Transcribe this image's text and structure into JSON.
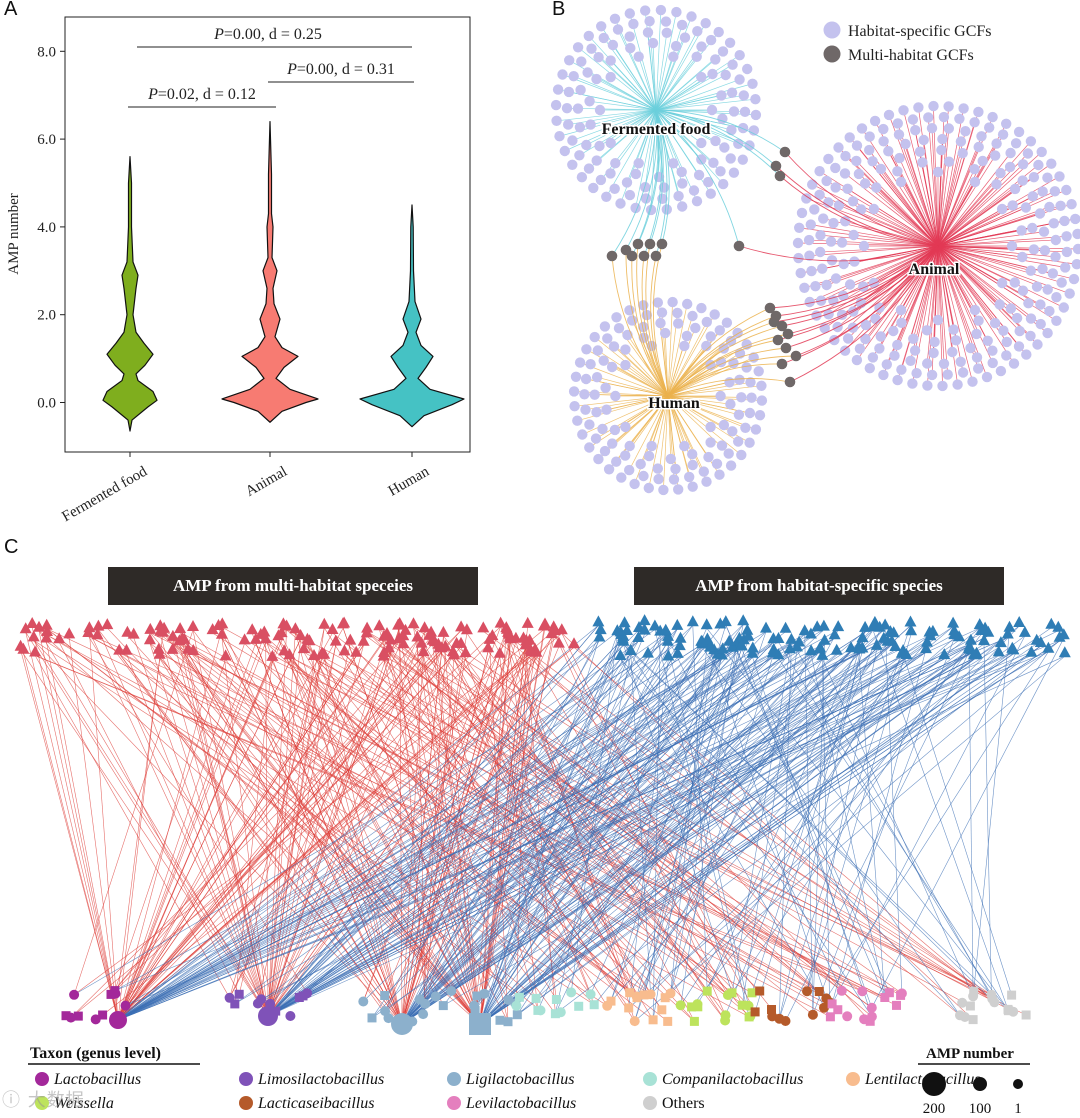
{
  "panels": {
    "A": "A",
    "B": "B",
    "C": "C"
  },
  "chart_data": [
    {
      "type": "violin",
      "panel": "A",
      "ylabel": "AMP number",
      "ylim": [
        -0.6,
        8.8
      ],
      "yticks": [
        "0.0",
        "2.0",
        "4.0",
        "6.0",
        "8.0"
      ],
      "categories": [
        "Fermented food",
        "Animal",
        "Human"
      ],
      "colors": [
        "#7fae1e",
        "#f77b72",
        "#45c2c4"
      ],
      "range_min": [
        -0.65,
        -0.45,
        -0.55
      ],
      "range_max": [
        5.6,
        6.4,
        4.5
      ],
      "annotations": [
        {
          "label_p": "P",
          "text": "=0.02, d = 0.12",
          "from": "Fermented food",
          "to": "Animal"
        },
        {
          "label_p": "P",
          "text": "=0.00, d = 0.31",
          "from": "Animal",
          "to": "Human"
        },
        {
          "label_p": "P",
          "text": "=0.00, d = 0.25",
          "from": "Fermented food",
          "to": "Human"
        }
      ]
    },
    {
      "type": "network",
      "panel": "B",
      "hubs": [
        "Fermented food",
        "Animal",
        "Human"
      ],
      "hub_colors": [
        "#6ccfdc",
        "#e23a55",
        "#ebb24c"
      ],
      "legend": [
        {
          "label": "Habitat-specific GCFs",
          "color": "#c4c2ee"
        },
        {
          "label": "Multi-habitat GCFs",
          "color": "#6f6868"
        }
      ]
    },
    {
      "type": "bipartite-network",
      "panel": "C",
      "groups": [
        {
          "label": "AMP from multi-habitat speceies",
          "color": "#d94f62"
        },
        {
          "label": "AMP from habitat-specific species",
          "color": "#2f7db5"
        }
      ],
      "legend_title": "Taxon (genus level)",
      "taxa": [
        {
          "name": "Lactobacillus",
          "color": "#a3289a",
          "italic": true
        },
        {
          "name": "Limosilactobacillus",
          "color": "#7f52b8",
          "italic": true
        },
        {
          "name": "Ligilactobacillus",
          "color": "#8cb0cc",
          "italic": true
        },
        {
          "name": "Companilactobacillus",
          "color": "#a8e2d6",
          "italic": true
        },
        {
          "name": "Lentilactobacillus",
          "color": "#f8bc8e",
          "italic": true
        },
        {
          "name": "Weissella",
          "color": "#bde35c",
          "italic": true
        },
        {
          "name": "Lacticaseibacillus",
          "color": "#b55a2a",
          "italic": true
        },
        {
          "name": "Levilactobacillus",
          "color": "#e47fbe",
          "italic": true
        },
        {
          "name": "Others",
          "color": "#cfcfcf",
          "italic": false
        }
      ],
      "size_legend": {
        "title": "AMP number",
        "values": [
          "200",
          "100",
          "1"
        ]
      }
    }
  ]
}
